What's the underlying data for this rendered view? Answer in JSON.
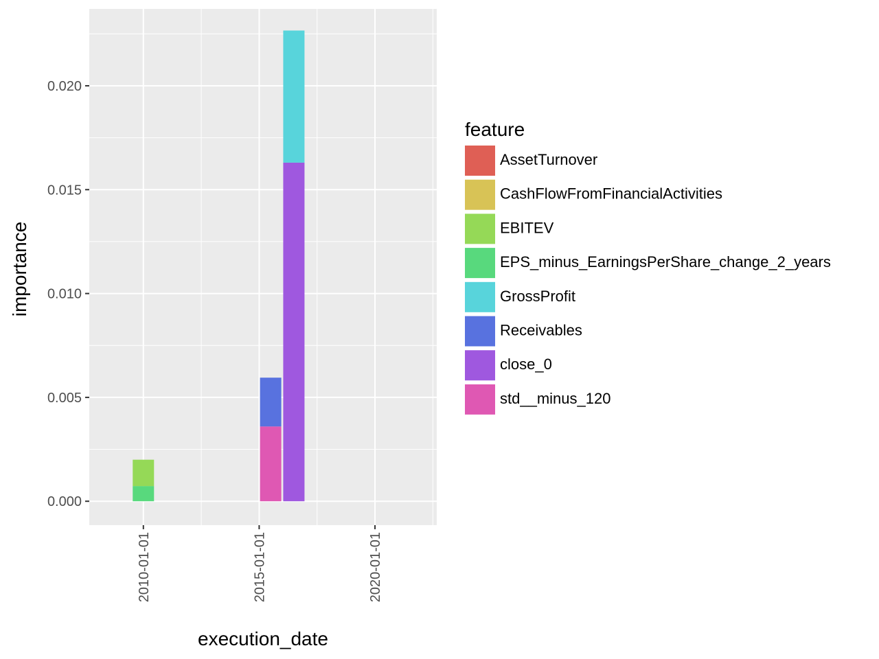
{
  "chart_data": {
    "type": "bar",
    "stacked": true,
    "xlabel": "execution_date",
    "ylabel": "importance",
    "x_ticks": [
      "2010-01-01",
      "2015-01-01",
      "2020-01-01"
    ],
    "y_ticks": [
      "0.000",
      "0.005",
      "0.010",
      "0.015",
      "0.020"
    ],
    "ylim": [
      -0.00115,
      0.0237
    ],
    "xlim": [
      "2007-09-01",
      "2022-09-01"
    ],
    "grid": true,
    "legend": {
      "title": "feature",
      "position": "right",
      "entries": [
        {
          "name": "AssetTurnover",
          "color": "#df5f55"
        },
        {
          "name": "CashFlowFromFinancialActivities",
          "color": "#d8c356"
        },
        {
          "name": "EBITEV",
          "color": "#95d957"
        },
        {
          "name": "EPS_minus_EarningsPerShare_change_2_years",
          "color": "#58d97d"
        },
        {
          "name": "GrossProfit",
          "color": "#58d4db"
        },
        {
          "name": "Receivables",
          "color": "#5872df"
        },
        {
          "name": "close_0",
          "color": "#9f58df"
        },
        {
          "name": "std__minus_120",
          "color": "#df58b3"
        }
      ]
    },
    "bars": [
      {
        "x": "2010-01-01",
        "segments": [
          {
            "series": "EPS_minus_EarningsPerShare_change_2_years",
            "value": 0.00073
          },
          {
            "series": "EBITEV",
            "value": 0.00127
          }
        ]
      },
      {
        "x": "2015-07-01",
        "segments": [
          {
            "series": "std__minus_120",
            "value": 0.0036
          },
          {
            "series": "Receivables",
            "value": 0.00235
          }
        ]
      },
      {
        "x": "2016-07-01",
        "segments": [
          {
            "series": "close_0",
            "value": 0.0163
          },
          {
            "series": "GrossProfit",
            "value": 0.00636
          }
        ]
      }
    ]
  }
}
